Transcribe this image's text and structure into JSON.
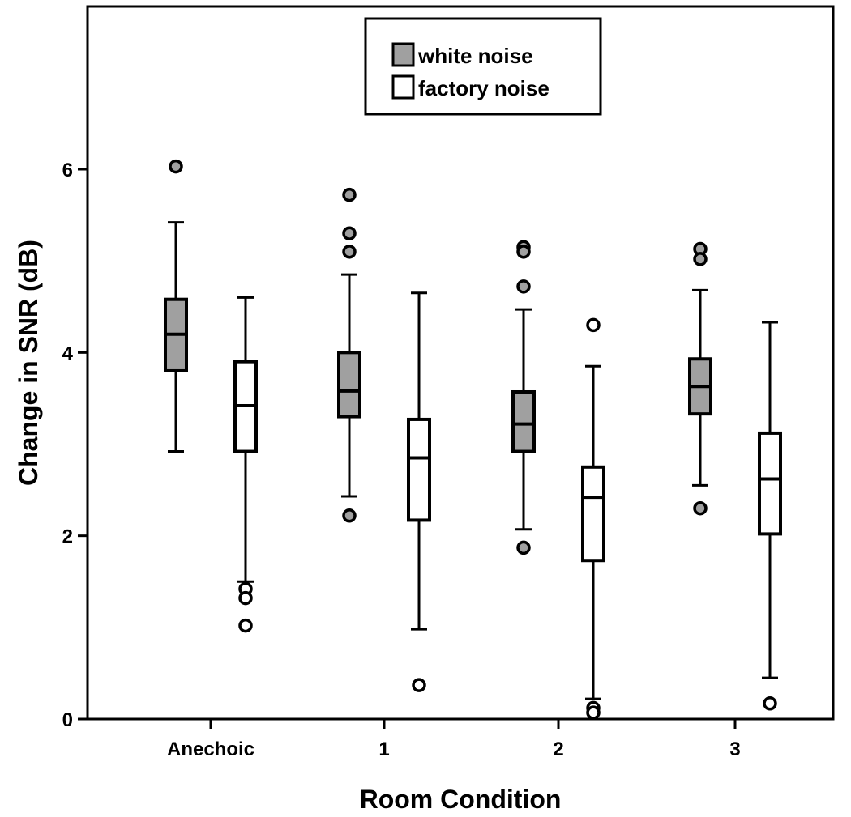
{
  "chart_data": {
    "type": "box",
    "title": "",
    "xlabel": "Room Condition",
    "ylabel": "Change in SNR (dB)",
    "categories": [
      "Anechoic",
      "1",
      "2",
      "3"
    ],
    "y_ticks": [
      "0",
      "2",
      "4",
      "6"
    ],
    "ylim": [
      0,
      7.65
    ],
    "legend_position": "top-center",
    "grid": false,
    "series": [
      {
        "name": "white noise",
        "color": "#a0a0a0",
        "boxes": [
          {
            "whisker_low": 2.92,
            "q1": 3.8,
            "median": 4.2,
            "q3": 4.58,
            "whisker_high": 5.42,
            "outliers": [
              6.03
            ]
          },
          {
            "whisker_low": 2.43,
            "q1": 3.3,
            "median": 3.58,
            "q3": 4.0,
            "whisker_high": 4.85,
            "outliers": [
              5.72,
              5.3,
              5.1,
              2.22
            ]
          },
          {
            "whisker_low": 2.07,
            "q1": 2.92,
            "median": 3.22,
            "q3": 3.57,
            "whisker_high": 4.47,
            "outliers": [
              5.15,
              5.1,
              4.72,
              1.87
            ]
          },
          {
            "whisker_low": 2.55,
            "q1": 3.33,
            "median": 3.63,
            "q3": 3.93,
            "whisker_high": 4.68,
            "outliers": [
              5.13,
              5.02,
              2.3
            ]
          }
        ]
      },
      {
        "name": "factory noise",
        "color": "#ffffff",
        "boxes": [
          {
            "whisker_low": 1.5,
            "q1": 2.92,
            "median": 3.42,
            "q3": 3.9,
            "whisker_high": 4.6,
            "outliers": [
              1.42,
              1.32,
              1.02
            ]
          },
          {
            "whisker_low": 0.98,
            "q1": 2.17,
            "median": 2.85,
            "q3": 3.27,
            "whisker_high": 4.65,
            "outliers": [
              0.37
            ]
          },
          {
            "whisker_low": 0.22,
            "q1": 1.73,
            "median": 2.42,
            "q3": 2.75,
            "whisker_high": 3.85,
            "outliers": [
              4.3,
              0.12,
              0.07
            ]
          },
          {
            "whisker_low": 0.45,
            "q1": 2.02,
            "median": 2.62,
            "q3": 3.12,
            "whisker_high": 4.33,
            "outliers": [
              0.17
            ]
          }
        ]
      }
    ]
  }
}
